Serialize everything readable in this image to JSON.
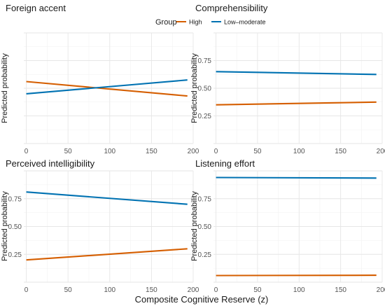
{
  "legend": {
    "title": "Group"
  },
  "xlabel": "Composite Cognitive Reserve (z)",
  "chart_data": {
    "type": "line",
    "xlabel": "Composite Cognitive Reserve (z)",
    "xlim": [
      -3,
      200
    ],
    "ylim": [
      0,
      1
    ],
    "x_ticks": [
      0,
      50,
      100,
      150,
      200
    ],
    "y_ticks": [
      0.25,
      0.5,
      0.75
    ],
    "y_tick_labels": [
      "0.25",
      "0.50",
      "0.75"
    ],
    "grid": true,
    "legend_position": "top",
    "series_styles": [
      {
        "name": "High",
        "color": "#D55E00"
      },
      {
        "name": "Low–moderate",
        "color": "#0072B2"
      }
    ],
    "panels": [
      {
        "title": "Foreign accent",
        "ylabel": "Predicted probability",
        "show_y_ticks": false,
        "series": [
          {
            "name": "High",
            "x": [
              0,
              193
            ],
            "y": [
              0.56,
              0.43
            ]
          },
          {
            "name": "Low–moderate",
            "x": [
              0,
              193
            ],
            "y": [
              0.45,
              0.575
            ]
          }
        ]
      },
      {
        "title": "Comprehensibility",
        "ylabel": "Predicted probability",
        "show_y_ticks": true,
        "series": [
          {
            "name": "High",
            "x": [
              0,
              193
            ],
            "y": [
              0.35,
              0.375
            ]
          },
          {
            "name": "Low–moderate",
            "x": [
              0,
              193
            ],
            "y": [
              0.65,
              0.625
            ]
          }
        ]
      },
      {
        "title": "Perceived intelligibility",
        "ylabel": "Predicted probability",
        "show_y_ticks": true,
        "series": [
          {
            "name": "High",
            "x": [
              0,
              193
            ],
            "y": [
              0.2,
              0.3
            ]
          },
          {
            "name": "Low–moderate",
            "x": [
              0,
              193
            ],
            "y": [
              0.81,
              0.7
            ]
          }
        ]
      },
      {
        "title": "Listening effort",
        "ylabel": "Predicted probability",
        "show_y_ticks": true,
        "series": [
          {
            "name": "High",
            "x": [
              0,
              193
            ],
            "y": [
              0.06,
              0.062
            ]
          },
          {
            "name": "Low–moderate",
            "x": [
              0,
              193
            ],
            "y": [
              0.94,
              0.935
            ]
          }
        ]
      }
    ]
  }
}
